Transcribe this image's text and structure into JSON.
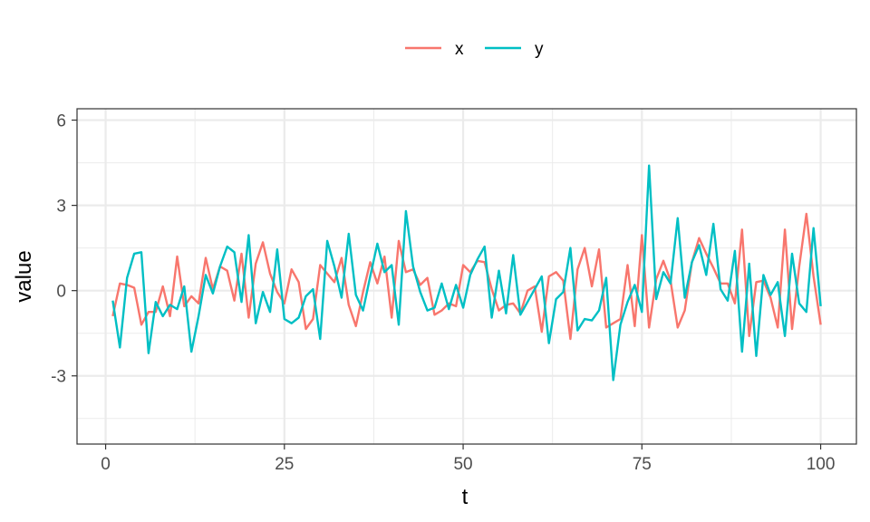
{
  "chart_data": {
    "type": "line",
    "xlabel": "t",
    "ylabel": "value",
    "xlim": [
      -4,
      105
    ],
    "ylim": [
      -5.4,
      6.4
    ],
    "x_ticks": [
      0,
      25,
      50,
      75,
      100
    ],
    "y_ticks": [
      -3,
      0,
      3,
      6
    ],
    "x_minor": [
      12.5,
      37.5,
      62.5,
      87.5
    ],
    "y_minor": [
      -4.5,
      -1.5,
      1.5,
      4.5
    ],
    "grid": true,
    "legend_position": "top",
    "x": [
      1,
      2,
      3,
      4,
      5,
      6,
      7,
      8,
      9,
      10,
      11,
      12,
      13,
      14,
      15,
      16,
      17,
      18,
      19,
      20,
      21,
      22,
      23,
      24,
      25,
      26,
      27,
      28,
      29,
      30,
      31,
      32,
      33,
      34,
      35,
      36,
      37,
      38,
      39,
      40,
      41,
      42,
      43,
      44,
      45,
      46,
      47,
      48,
      49,
      50,
      51,
      52,
      53,
      54,
      55,
      56,
      57,
      58,
      59,
      60,
      61,
      62,
      63,
      64,
      65,
      66,
      67,
      68,
      69,
      70,
      71,
      72,
      73,
      74,
      75,
      76,
      77,
      78,
      79,
      80,
      81,
      82,
      83,
      84,
      85,
      86,
      87,
      88,
      89,
      90,
      91,
      92,
      93,
      94,
      95,
      96,
      97,
      98,
      99,
      100
    ],
    "series": [
      {
        "name": "x",
        "color": "#F8766D",
        "values": [
          -0.9,
          0.25,
          0.2,
          0.1,
          -1.2,
          -0.75,
          -0.75,
          0.15,
          -0.9,
          1.2,
          -0.55,
          -0.2,
          -0.45,
          1.15,
          0.05,
          0.85,
          0.7,
          -0.35,
          1.3,
          -0.95,
          0.95,
          1.7,
          0.6,
          -0.05,
          -0.45,
          0.75,
          0.3,
          -1.35,
          -1.0,
          0.9,
          0.6,
          0.3,
          1.15,
          -0.5,
          -1.25,
          -0.05,
          1.0,
          0.25,
          1.2,
          -0.95,
          1.75,
          0.65,
          0.75,
          0.2,
          0.45,
          -0.85,
          -0.7,
          -0.45,
          -0.55,
          0.9,
          0.65,
          1.05,
          1.0,
          0.05,
          -0.7,
          -0.5,
          -0.45,
          -0.8,
          0.0,
          0.15,
          -1.45,
          0.5,
          0.65,
          0.35,
          -1.7,
          0.75,
          1.5,
          0.15,
          1.45,
          -1.3,
          -1.15,
          -1.0,
          0.9,
          -1.25,
          1.95,
          -1.3,
          0.4,
          1.05,
          0.35,
          -1.3,
          -0.7,
          1.0,
          1.85,
          1.3,
          0.8,
          0.25,
          0.25,
          -0.45,
          2.15,
          -1.6,
          0.3,
          0.35,
          -0.25,
          -1.3,
          2.15,
          -1.35,
          0.85,
          2.7,
          0.5,
          -1.2
        ]
      },
      {
        "name": "y",
        "color": "#00BFC4",
        "values": [
          -0.35,
          -2.0,
          0.45,
          1.3,
          1.35,
          -2.2,
          -0.4,
          -0.9,
          -0.5,
          -0.65,
          0.15,
          -2.15,
          -0.9,
          0.55,
          -0.1,
          0.85,
          1.55,
          1.35,
          -0.4,
          1.95,
          -1.15,
          -0.05,
          -0.75,
          1.45,
          -1.0,
          -1.15,
          -0.95,
          -0.2,
          0.05,
          -1.7,
          1.75,
          0.85,
          -0.25,
          2.0,
          -0.15,
          -0.7,
          0.5,
          1.65,
          0.65,
          0.9,
          -1.2,
          2.8,
          0.85,
          -0.05,
          -0.7,
          -0.6,
          0.25,
          -0.65,
          0.2,
          -0.6,
          0.55,
          1.1,
          1.55,
          -0.95,
          0.7,
          -0.8,
          1.25,
          -0.85,
          -0.4,
          0.05,
          0.5,
          -1.85,
          -0.3,
          -0.05,
          1.5,
          -1.4,
          -1.0,
          -1.05,
          -0.7,
          0.45,
          -3.15,
          -1.2,
          -0.4,
          0.2,
          -0.75,
          4.4,
          -0.3,
          0.65,
          0.25,
          2.55,
          -0.25,
          1.0,
          1.6,
          0.55,
          2.35,
          0.05,
          -0.35,
          1.4,
          -2.15,
          0.95,
          -2.3,
          0.55,
          -0.15,
          0.3,
          -1.6,
          1.3,
          -0.45,
          -0.75,
          2.2,
          -0.55
        ]
      }
    ]
  }
}
